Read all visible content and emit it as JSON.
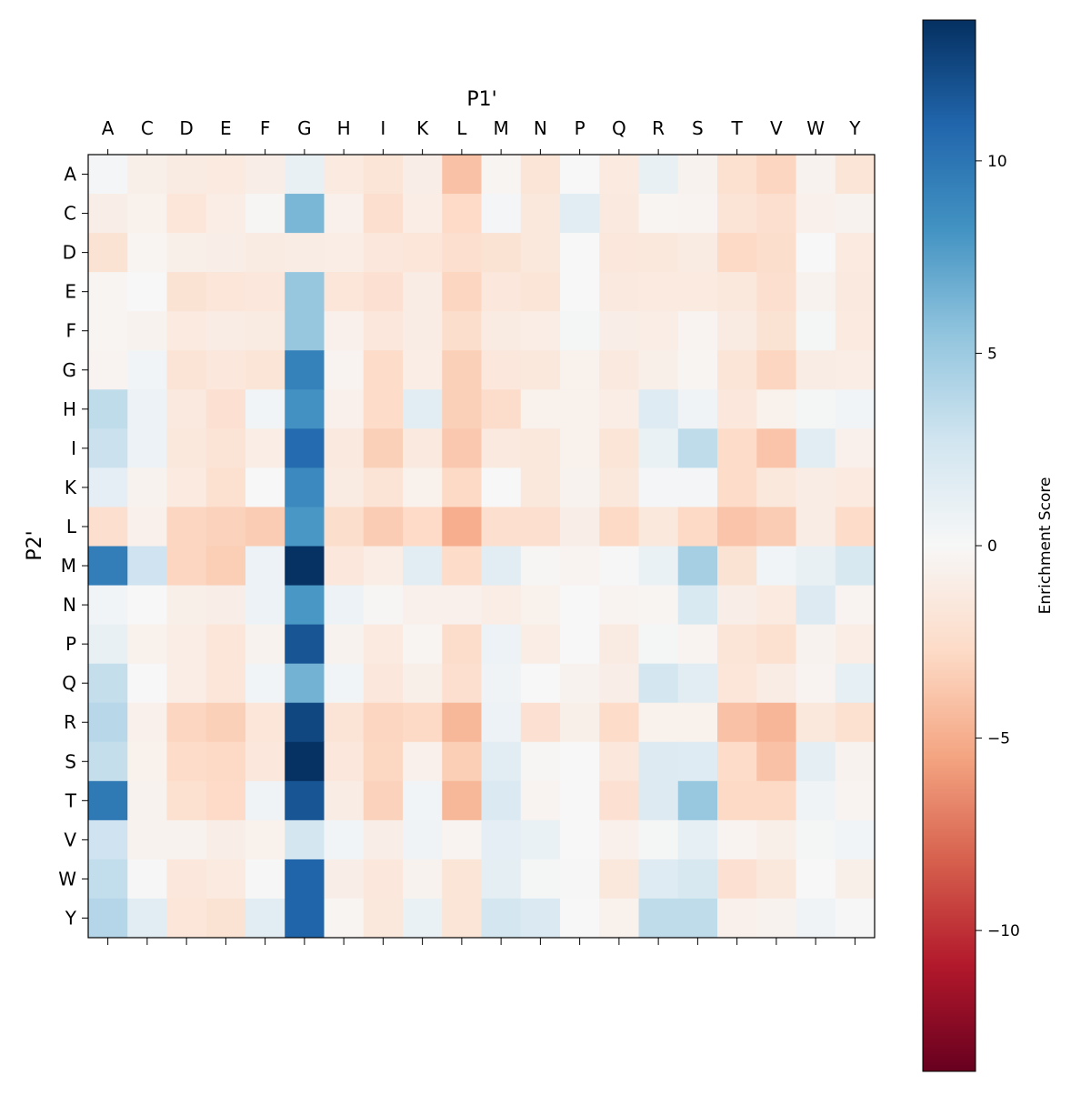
{
  "chart_data": {
    "type": "heatmap",
    "title": "",
    "xlabel": "P1'",
    "ylabel": "P2'",
    "x_categories": [
      "A",
      "C",
      "D",
      "E",
      "F",
      "G",
      "H",
      "I",
      "K",
      "L",
      "M",
      "N",
      "P",
      "Q",
      "R",
      "S",
      "T",
      "V",
      "W",
      "Y"
    ],
    "y_categories": [
      "A",
      "C",
      "D",
      "E",
      "F",
      "G",
      "H",
      "I",
      "K",
      "L",
      "M",
      "N",
      "P",
      "Q",
      "R",
      "S",
      "T",
      "V",
      "W",
      "Y"
    ],
    "colormap": "RdBu",
    "colormap_colors": [
      "#67001f",
      "#b2182b",
      "#d6604d",
      "#f4a582",
      "#fddbc7",
      "#f7f7f7",
      "#d1e5f0",
      "#92c5de",
      "#4393c3",
      "#2166ac",
      "#053061"
    ],
    "vmin": -13.66,
    "vmax": 13.66,
    "colorbar": {
      "label": "Enrichment Score",
      "ticks": [
        10,
        5,
        0,
        -5,
        -10
      ],
      "tick_labels": [
        "10",
        "5",
        "0",
        "−5",
        "−10"
      ]
    },
    "values": [
      [
        0.3,
        -0.8,
        -1.2,
        -1.3,
        -0.9,
        1.0,
        -1.3,
        -1.8,
        -0.9,
        -4.0,
        -0.3,
        -1.8,
        0,
        -1.3,
        1.0,
        -0.5,
        -2.2,
        -3.0,
        -0.5,
        -1.8
      ],
      [
        -0.9,
        -0.6,
        -1.7,
        -1.0,
        -0.2,
        6.3,
        -0.7,
        -2.3,
        -1.0,
        -2.7,
        0.3,
        -1.5,
        1.5,
        -1.4,
        -0.3,
        -0.4,
        -1.9,
        -2.3,
        -0.7,
        -0.5
      ],
      [
        -2.0,
        -0.3,
        -0.8,
        -0.9,
        -1.2,
        -1.1,
        -1.0,
        -1.6,
        -1.7,
        -2.3,
        -2.0,
        -1.5,
        0,
        -1.6,
        -1.5,
        -1.2,
        -2.8,
        -2.4,
        0,
        -1.3
      ],
      [
        -0.3,
        0,
        -2.0,
        -1.7,
        -1.6,
        5.3,
        -1.7,
        -2.1,
        -1.1,
        -3.0,
        -1.6,
        -1.8,
        0,
        -1.4,
        -1.3,
        -1.3,
        -1.5,
        -2.3,
        -0.5,
        -1.4
      ],
      [
        -0.3,
        -0.5,
        -1.3,
        -1.1,
        -1.2,
        5.3,
        -0.7,
        -1.6,
        -1.1,
        -2.4,
        -1.2,
        -1.0,
        0.2,
        -0.9,
        -1.0,
        -0.4,
        -1.2,
        -2.0,
        0.2,
        -1.3
      ],
      [
        -0.4,
        0.4,
        -1.9,
        -1.6,
        -1.8,
        9.3,
        -0.4,
        -2.6,
        -1.0,
        -3.3,
        -1.6,
        -1.5,
        -0.6,
        -1.4,
        -0.8,
        -0.3,
        -1.8,
        -3.0,
        -1.1,
        -1.0
      ],
      [
        3.5,
        0.8,
        -1.4,
        -2.1,
        0.5,
        8.3,
        -0.7,
        -2.6,
        1.5,
        -3.3,
        -2.5,
        -0.6,
        -0.6,
        -1.0,
        1.8,
        0.6,
        -1.6,
        -0.6,
        0.2,
        0.4
      ],
      [
        3.0,
        0.8,
        -1.5,
        -1.9,
        -1.0,
        10.6,
        -1.4,
        -3.3,
        -1.4,
        -3.7,
        -1.4,
        -1.5,
        -0.6,
        -1.8,
        0.9,
        3.5,
        -2.6,
        -3.9,
        1.5,
        -0.7
      ],
      [
        1.3,
        -0.5,
        -1.3,
        -2.2,
        0,
        8.8,
        -1.2,
        -1.9,
        -0.6,
        -2.8,
        0,
        -1.5,
        -0.5,
        -1.5,
        0.3,
        0.3,
        -2.6,
        -1.5,
        -1.1,
        -1.3
      ],
      [
        -2.3,
        -0.7,
        -3.0,
        -3.2,
        -3.5,
        8.0,
        -2.4,
        -3.5,
        -2.7,
        -5.0,
        -2.3,
        -2.3,
        -0.9,
        -2.8,
        -1.5,
        -2.8,
        -3.9,
        -3.5,
        -1.1,
        -2.6
      ],
      [
        9.5,
        2.8,
        -3.0,
        -3.4,
        0.8,
        13.6,
        -1.6,
        -1.0,
        1.6,
        -2.6,
        1.6,
        -0.2,
        -0.4,
        0.1,
        0.9,
        4.6,
        -2.0,
        0.5,
        1.0,
        2.3
      ],
      [
        0.4,
        0,
        -0.8,
        -0.9,
        0.8,
        8.0,
        0.8,
        -0.2,
        -0.7,
        -0.7,
        -1.0,
        -0.6,
        0,
        -0.4,
        -0.3,
        2.2,
        -0.9,
        -1.3,
        1.9,
        -0.4
      ],
      [
        1.0,
        -0.6,
        -1.0,
        -1.7,
        -0.5,
        11.8,
        -0.5,
        -1.3,
        -0.3,
        -2.5,
        0.8,
        -1.0,
        0,
        -1.2,
        0.2,
        -0.4,
        -1.8,
        -2.2,
        -0.5,
        -1.0
      ],
      [
        3.3,
        0,
        -1.0,
        -1.7,
        0.5,
        6.5,
        0.4,
        -1.6,
        -0.8,
        -2.3,
        0.6,
        0,
        -0.5,
        -0.9,
        2.5,
        1.5,
        -1.7,
        -1.1,
        -0.4,
        1.2
      ],
      [
        3.8,
        -0.7,
        -3.0,
        -3.3,
        -1.7,
        12.5,
        -1.9,
        -3.0,
        -2.8,
        -4.5,
        0.8,
        -2.1,
        -0.8,
        -2.6,
        -0.6,
        -0.6,
        -4.0,
        -4.6,
        -1.5,
        -2.2
      ],
      [
        3.3,
        -0.6,
        -2.6,
        -2.8,
        -1.6,
        13.6,
        -1.6,
        -2.9,
        -0.7,
        -3.4,
        1.6,
        -0.2,
        0,
        -1.6,
        1.9,
        1.8,
        -2.6,
        -4.0,
        1.4,
        -0.5
      ],
      [
        9.8,
        -0.5,
        -2.2,
        -2.7,
        0.6,
        11.8,
        -1.1,
        -3.2,
        0.4,
        -4.5,
        2.1,
        -0.4,
        0,
        -2.1,
        1.9,
        5.2,
        -2.8,
        -2.8,
        0.6,
        -0.4
      ],
      [
        2.8,
        -0.5,
        -0.5,
        -0.9,
        -0.6,
        2.5,
        0.5,
        -0.9,
        0.6,
        -0.4,
        1.3,
        0.9,
        0,
        -0.7,
        0.2,
        1.2,
        -0.4,
        -0.8,
        0.2,
        0.5
      ],
      [
        3.4,
        0.1,
        -1.6,
        -1.3,
        0.1,
        11.0,
        -0.9,
        -1.6,
        -0.5,
        -1.8,
        1.4,
        0.2,
        0.1,
        -1.5,
        1.8,
        2.3,
        -2.1,
        -1.5,
        0,
        -0.8
      ],
      [
        4.0,
        1.5,
        -1.7,
        -2.0,
        1.6,
        11.0,
        -0.3,
        -1.5,
        0.9,
        -1.8,
        2.5,
        2.0,
        0,
        -0.6,
        3.5,
        3.5,
        -0.7,
        -0.5,
        0.6,
        0.1
      ]
    ]
  }
}
